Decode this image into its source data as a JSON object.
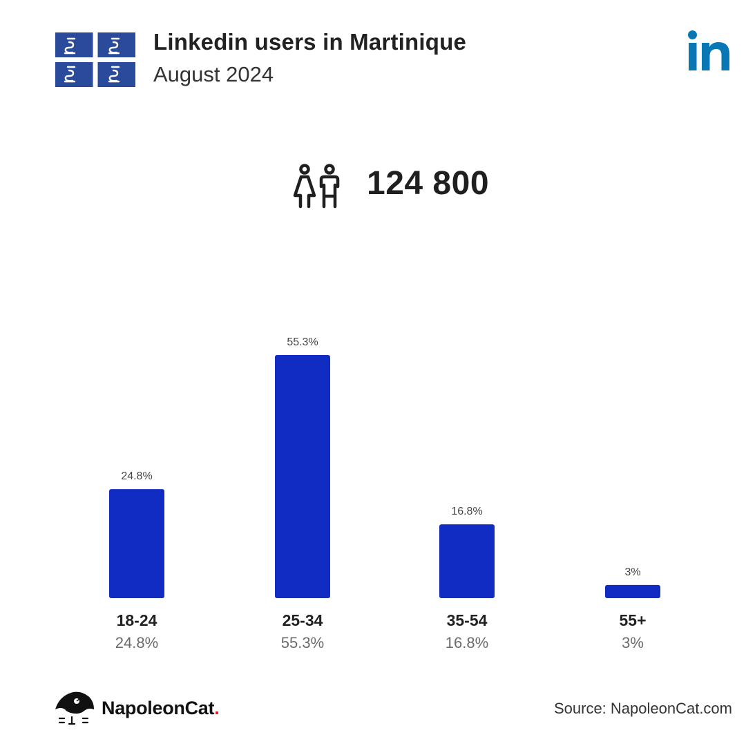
{
  "header": {
    "title": "Linkedin users in Martinique",
    "subtitle": "August 2024"
  },
  "icons": {
    "flag": "martinique-flag-icon",
    "brand_logo": "linkedin-logo-icon",
    "people": "people-icon",
    "footer_logo": "napoleoncat-logo-icon"
  },
  "summary": {
    "total_users": "124 800"
  },
  "chart_data": {
    "type": "bar",
    "categories": [
      "18-24",
      "25-34",
      "35-54",
      "55+"
    ],
    "values": [
      24.8,
      55.3,
      16.8,
      3
    ],
    "data_labels": [
      "24.8%",
      "55.3%",
      "16.8%",
      "3%"
    ],
    "title": "",
    "xlabel": "",
    "ylabel": "",
    "ylim": [
      0,
      60
    ],
    "grid": false,
    "legend": "none"
  },
  "colors": {
    "bar": "#102cc3",
    "linkedin": "#0a77b5",
    "flag_blue": "#2a4a9c",
    "brand_dot": "#e31e2d"
  },
  "footer": {
    "brand_name": "NapoleonCat",
    "brand_dot": ".",
    "source": "Source: NapoleonCat.com"
  }
}
